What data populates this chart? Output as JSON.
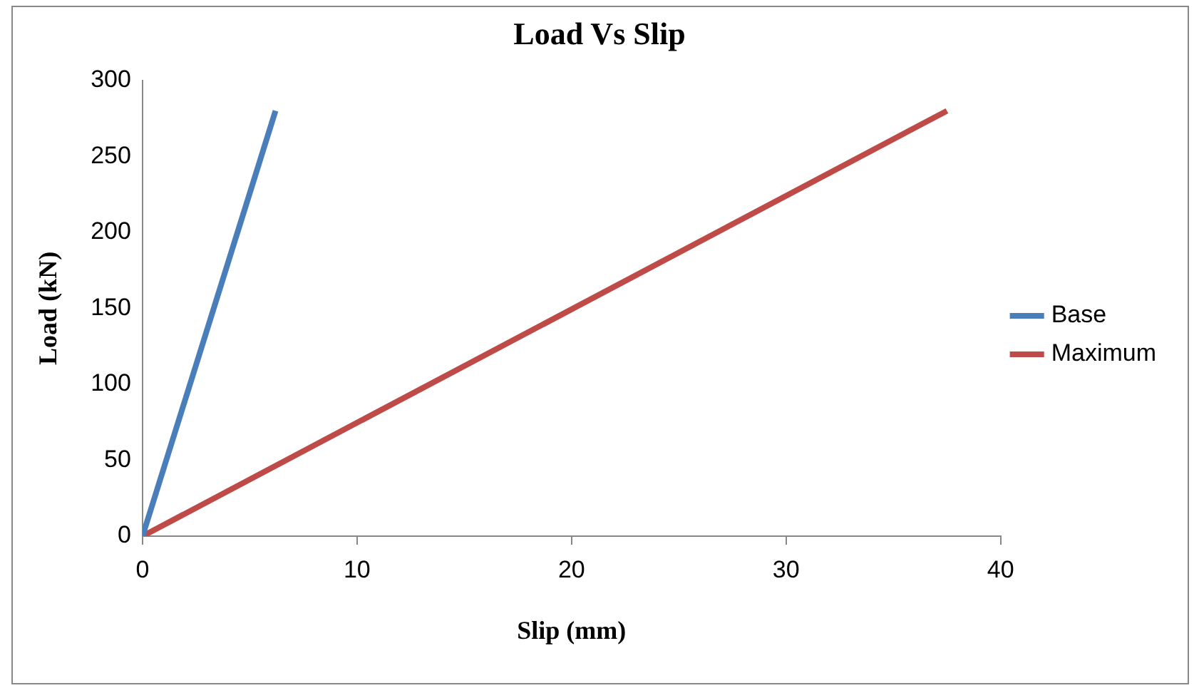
{
  "chart_data": {
    "type": "line",
    "title": "Load Vs Slip",
    "xlabel": "Slip (mm)",
    "ylabel": "Load (kN)",
    "xlim": [
      0,
      40
    ],
    "xticks": [
      0,
      10,
      20,
      30,
      40
    ],
    "ylim": [
      0,
      300
    ],
    "yticks": [
      0,
      50,
      100,
      150,
      200,
      250,
      300
    ],
    "series": [
      {
        "name": "Base",
        "color": "#4a7ebb",
        "x": [
          0,
          6.2
        ],
        "values": [
          0,
          280
        ]
      },
      {
        "name": "Maximum",
        "color": "#be4b48",
        "x": [
          0,
          37.5
        ],
        "values": [
          0,
          280
        ]
      }
    ],
    "grid": false,
    "legend": "right",
    "marker": "none",
    "line_style": "solid"
  }
}
